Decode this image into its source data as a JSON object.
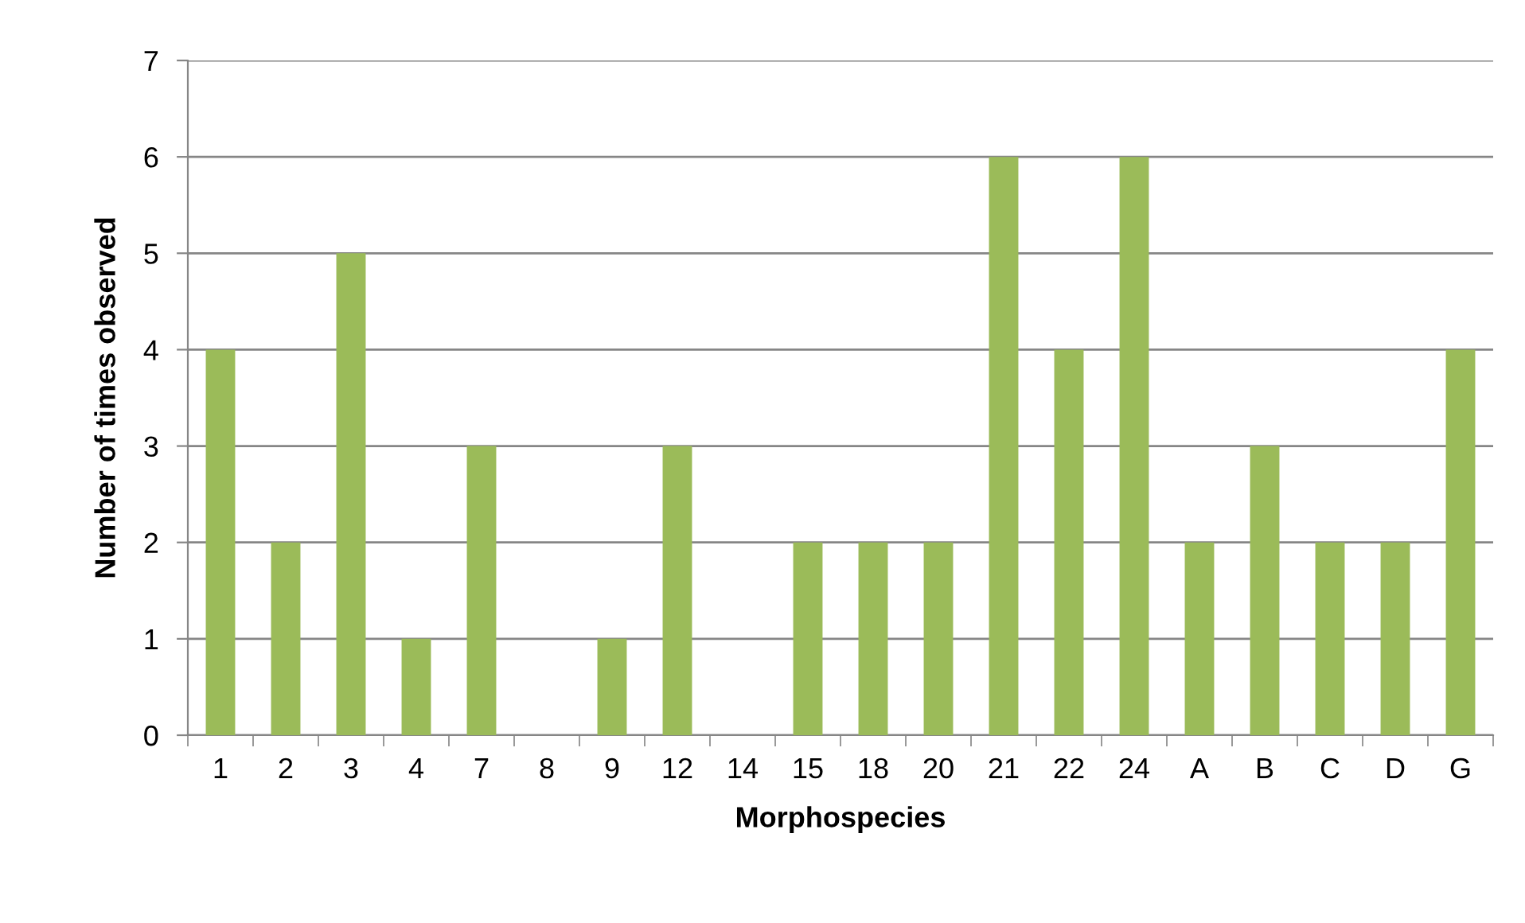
{
  "chart_data": {
    "type": "bar",
    "xlabel": "Morphospecies",
    "ylabel": "Number of times observed",
    "categories": [
      "1",
      "2",
      "3",
      "4",
      "7",
      "8",
      "9",
      "12",
      "14",
      "15",
      "18",
      "20",
      "21",
      "22",
      "24",
      "A",
      "B",
      "C",
      "D",
      "G"
    ],
    "values": [
      4,
      2,
      5,
      1,
      3,
      0,
      1,
      3,
      0,
      2,
      2,
      2,
      6,
      4,
      6,
      2,
      3,
      2,
      2,
      4
    ],
    "color": "#9bbb59",
    "ylim": [
      0,
      7
    ],
    "yticks": [
      0,
      1,
      2,
      3,
      4,
      5,
      6,
      7
    ],
    "grid": "y",
    "legend": false
  }
}
